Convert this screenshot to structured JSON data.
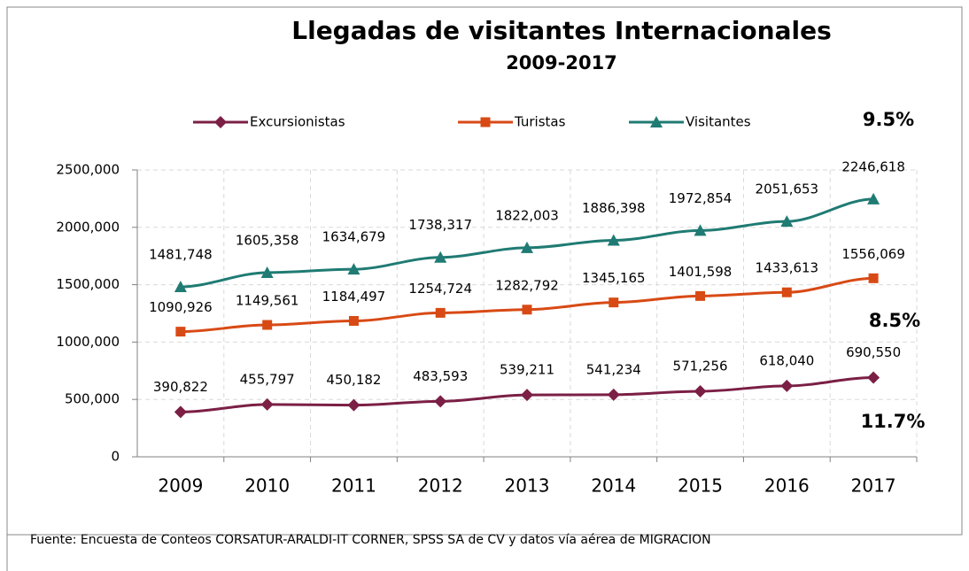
{
  "chart_data": {
    "type": "line",
    "title": "Llegadas de visitantes  Internacionales",
    "subtitle": "2009-2017",
    "categories": [
      "2009",
      "2010",
      "2011",
      "2012",
      "2013",
      "2014",
      "2015",
      "2016",
      "2017"
    ],
    "series": [
      {
        "name": "Excursionistas",
        "color": "#7b1f45",
        "marker": "diamond",
        "values": [
          390822,
          455797,
          450182,
          483593,
          539211,
          541234,
          571256,
          618040,
          690550
        ],
        "value_labels": [
          "390,822",
          "455,797",
          "450,182",
          "483,593",
          "539,211",
          "541,234",
          "571,256",
          "618,040",
          "690,550"
        ]
      },
      {
        "name": "Turistas",
        "color": "#d84a15",
        "marker": "square",
        "values": [
          1090926,
          1149561,
          1184497,
          1254724,
          1282792,
          1345165,
          1401598,
          1433613,
          1556069
        ],
        "value_labels": [
          "1090,926",
          "1149,561",
          "1184,497",
          "1254,724",
          "1282,792",
          "1345,165",
          "1401,598",
          "1433,613",
          "1556,069"
        ]
      },
      {
        "name": "Visitantes",
        "color": "#1f7b73",
        "marker": "triangle",
        "values": [
          1481748,
          1605358,
          1634679,
          1738317,
          1822003,
          1886398,
          1972854,
          2051653,
          2246618
        ],
        "value_labels": [
          "1481,748",
          "1605,358",
          "1634,679",
          "1738,317",
          "1822,003",
          "1886,398",
          "1972,854",
          "2051,653",
          "2246,618"
        ]
      }
    ],
    "ylim": [
      0,
      2500000
    ],
    "yticks": [
      0,
      {
        "value": 500000,
        "label": "500,000"
      },
      {
        "value": 1000000,
        "label": "1000,000"
      },
      {
        "value": 1500000,
        "label": "1500,000"
      },
      {
        "value": 2000000,
        "label": "2000,000"
      },
      {
        "value": 2500000,
        "label": "2500,000"
      }
    ],
    "grid": true,
    "legend": "top",
    "annotations": [
      "9.5%",
      "8.5%",
      "11.7%"
    ],
    "source": "Fuente: Encuesta de Conteos CORSATUR-ARALDI-IT CORNER, SPSS SA de CV y  datos vía aérea de MIGRACION"
  }
}
